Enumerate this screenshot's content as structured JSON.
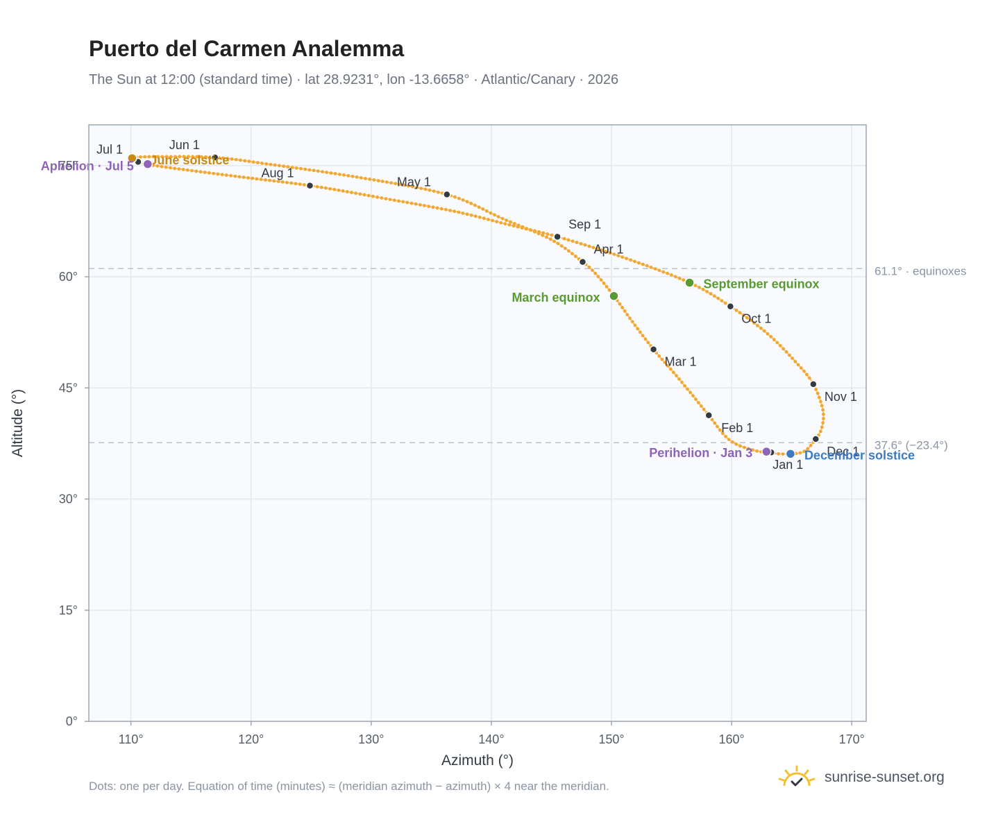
{
  "header": {
    "title": "Puerto del Carmen Analemma",
    "subtitle": "The Sun at 12:00 (standard time) · lat 28.9231°, lon -13.6658° · Atlantic/Canary · 2026"
  },
  "footer": {
    "note": "Dots: one per day. Equation of time (minutes) ≈ (meridian azimuth − azimuth) × 4 near the meridian.",
    "brand": "sunrise-sunset.org"
  },
  "colors": {
    "curve": "#f2a730",
    "month_dot": "#333a44",
    "june_solstice": "#c98a14",
    "equinox": "#5a9a32",
    "december_solstice": "#3d7abf",
    "apsis": "#8e63b8",
    "reference_line": "#b9c4cf",
    "plot_bg": "#f8fafd",
    "grid": "#e3e8ee",
    "brand_sun": "#f2c12e"
  },
  "chart_data": {
    "type": "scatter",
    "xlabel": "Azimuth (°)",
    "ylabel": "Altitude (°)",
    "xlim": [
      106.5,
      171.2
    ],
    "ylim": [
      0,
      80.5
    ],
    "xticks": [
      110,
      120,
      130,
      140,
      150,
      160,
      170
    ],
    "xtick_labels": [
      "110°",
      "120°",
      "130°",
      "140°",
      "150°",
      "160°",
      "170°"
    ],
    "yticks": [
      0,
      15,
      30,
      45,
      60,
      75
    ],
    "ytick_labels": [
      "0°",
      "15°",
      "30°",
      "45°",
      "60°",
      "75°"
    ],
    "grid": true,
    "analemma_path": [
      {
        "az": 163.9,
        "alt": 36.1
      },
      {
        "az": 161.8,
        "alt": 36.6
      },
      {
        "az": 159.8,
        "alt": 38.0
      },
      {
        "az": 158.1,
        "alt": 41.3
      },
      {
        "az": 156.6,
        "alt": 44.3
      },
      {
        "az": 155.0,
        "alt": 47.4
      },
      {
        "az": 153.5,
        "alt": 50.2
      },
      {
        "az": 151.8,
        "alt": 53.8
      },
      {
        "az": 150.2,
        "alt": 57.4
      },
      {
        "az": 148.8,
        "alt": 60.2
      },
      {
        "az": 147.6,
        "alt": 62.0
      },
      {
        "az": 145.0,
        "alt": 65.0
      },
      {
        "az": 141.0,
        "alt": 67.8
      },
      {
        "az": 136.3,
        "alt": 71.1
      },
      {
        "az": 129.0,
        "alt": 73.4
      },
      {
        "az": 121.0,
        "alt": 75.3
      },
      {
        "az": 117.0,
        "alt": 76.1
      },
      {
        "az": 113.0,
        "alt": 76.2
      },
      {
        "az": 110.3,
        "alt": 76.1
      },
      {
        "az": 110.6,
        "alt": 75.5
      },
      {
        "az": 112.0,
        "alt": 75.0
      },
      {
        "az": 118.0,
        "alt": 73.7
      },
      {
        "az": 124.9,
        "alt": 72.3
      },
      {
        "az": 131.0,
        "alt": 70.6
      },
      {
        "az": 137.0,
        "alt": 68.8
      },
      {
        "az": 141.5,
        "alt": 67.0
      },
      {
        "az": 145.5,
        "alt": 65.4
      },
      {
        "az": 151.0,
        "alt": 62.6
      },
      {
        "az": 156.5,
        "alt": 59.2
      },
      {
        "az": 159.9,
        "alt": 56.0
      },
      {
        "az": 163.0,
        "alt": 52.3
      },
      {
        "az": 165.5,
        "alt": 48.2
      },
      {
        "az": 166.8,
        "alt": 45.5
      },
      {
        "az": 167.6,
        "alt": 42.0
      },
      {
        "az": 167.5,
        "alt": 39.6
      },
      {
        "az": 167.0,
        "alt": 38.1
      },
      {
        "az": 166.0,
        "alt": 36.4
      },
      {
        "az": 164.6,
        "alt": 36.1
      },
      {
        "az": 163.9,
        "alt": 36.1
      }
    ],
    "month_markers": [
      {
        "label": "Jan 1",
        "az": 163.3,
        "alt": 36.3,
        "lx": 2,
        "ly": 24
      },
      {
        "label": "Feb 1",
        "az": 158.1,
        "alt": 41.3,
        "lx": 18,
        "ly": 24
      },
      {
        "label": "Mar 1",
        "az": 153.5,
        "alt": 50.2,
        "lx": 16,
        "ly": 24
      },
      {
        "label": "Apr 1",
        "az": 147.6,
        "alt": 62.0,
        "lx": 16,
        "ly": -12
      },
      {
        "label": "May 1",
        "az": 136.3,
        "alt": 71.1,
        "lx": -72,
        "ly": -12
      },
      {
        "label": "Jun 1",
        "az": 117.0,
        "alt": 76.1,
        "lx": -66,
        "ly": -12
      },
      {
        "label": "Jul 1",
        "az": 110.6,
        "alt": 75.5,
        "lx": -60,
        "ly": -12
      },
      {
        "label": "Aug 1",
        "az": 124.9,
        "alt": 72.3,
        "lx": -70,
        "ly": -12
      },
      {
        "label": "Sep 1",
        "az": 145.5,
        "alt": 65.4,
        "lx": 16,
        "ly": -12
      },
      {
        "label": "Oct 1",
        "az": 159.9,
        "alt": 56.0,
        "lx": 16,
        "ly": 24
      },
      {
        "label": "Nov 1",
        "az": 166.8,
        "alt": 45.5,
        "lx": 16,
        "ly": 24
      },
      {
        "label": "Dec 1",
        "az": 167.0,
        "alt": 38.1,
        "lx": 16,
        "ly": 24
      }
    ],
    "events": [
      {
        "label": "June solstice",
        "az": 110.1,
        "alt": 76.0,
        "color": "#c98a14",
        "anchor": "start",
        "lx": 26,
        "ly": 9
      },
      {
        "label": "Aphelion · Jul 5",
        "az": 111.4,
        "alt": 75.2,
        "color": "#8e63b8",
        "anchor": "end",
        "lx": -20,
        "ly": 9
      },
      {
        "label": "March equinox",
        "az": 150.2,
        "alt": 57.4,
        "color": "#5a9a32",
        "anchor": "end",
        "lx": -20,
        "ly": 8
      },
      {
        "label": "September equinox",
        "az": 156.5,
        "alt": 59.2,
        "color": "#5a9a32",
        "anchor": "start",
        "lx": 20,
        "ly": 8
      },
      {
        "label": "Perihelion · Jan 3",
        "az": 162.9,
        "alt": 36.4,
        "color": "#8e63b8",
        "anchor": "end",
        "lx": -20,
        "ly": 8
      },
      {
        "label": "December solstice",
        "az": 164.9,
        "alt": 36.1,
        "color": "#3d7abf",
        "anchor": "start",
        "lx": 20,
        "ly": 8
      }
    ],
    "reference_lines": [
      {
        "alt": 61.1,
        "label": "61.1° · equinoxes"
      },
      {
        "alt": 37.6,
        "label": "37.6° (−23.4°)"
      }
    ]
  }
}
